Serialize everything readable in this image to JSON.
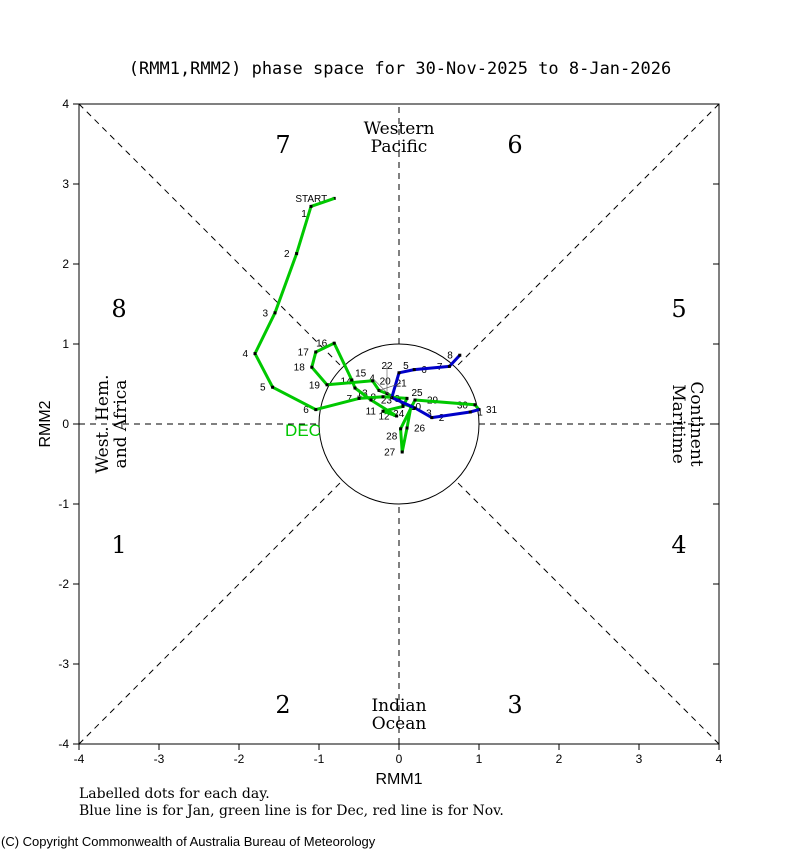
{
  "chart_data": {
    "type": "line",
    "title": "(RMM1,RMM2) phase space for 30-Nov-2025 to  8-Jan-2026",
    "xlabel": "RMM1",
    "ylabel": "RMM2",
    "xlim": [
      -4,
      4
    ],
    "ylim": [
      -4,
      4
    ],
    "xticks": [
      "-4",
      "-3",
      "-2",
      "-1",
      "0",
      "1",
      "2",
      "3",
      "4"
    ],
    "yticks": [
      "-4",
      "-3",
      "-2",
      "-1",
      "0",
      "1",
      "2",
      "3",
      "4"
    ],
    "phases": [
      {
        "label": "1",
        "x": -3.5,
        "y": -1.5
      },
      {
        "label": "2",
        "x": -1.45,
        "y": -3.5
      },
      {
        "label": "3",
        "x": 1.45,
        "y": -3.5
      },
      {
        "label": "4",
        "x": 3.5,
        "y": -1.5
      },
      {
        "label": "5",
        "x": 3.5,
        "y": 1.45
      },
      {
        "label": "6",
        "x": 1.45,
        "y": 3.5
      },
      {
        "label": "7",
        "x": -1.45,
        "y": 3.5
      },
      {
        "label": "8",
        "x": -3.5,
        "y": 1.45
      }
    ],
    "regions": {
      "top": [
        "Western",
        "Pacific"
      ],
      "bottom": [
        "Indian",
        "Ocean"
      ],
      "left": [
        "West. Hem.",
        "and Africa"
      ],
      "right": [
        "Maritime",
        "Continent"
      ]
    },
    "start_label": "START",
    "month_label": "DEC",
    "series": [
      {
        "name": "Nov",
        "color": "#ff0000",
        "points": [
          {
            "label": "START",
            "x": -0.81,
            "y": 2.82
          }
        ]
      },
      {
        "name": "Dec",
        "color": "#00c800",
        "points": [
          {
            "label": "1",
            "x": -1.1,
            "y": 2.72
          },
          {
            "label": "2",
            "x": -1.28,
            "y": 2.13
          },
          {
            "label": "3",
            "x": -1.55,
            "y": 1.39
          },
          {
            "label": "4",
            "x": -1.8,
            "y": 0.88
          },
          {
            "label": "5",
            "x": -1.58,
            "y": 0.46
          },
          {
            "label": "6",
            "x": -1.04,
            "y": 0.18
          },
          {
            "label": "7",
            "x": -0.5,
            "y": 0.32
          },
          {
            "label": "8",
            "x": -0.2,
            "y": 0.34
          },
          {
            "label": "9",
            "x": 0.1,
            "y": 0.32
          },
          {
            "label": "10",
            "x": 0.05,
            "y": 0.22
          },
          {
            "label": "11",
            "x": -0.2,
            "y": 0.16
          },
          {
            "label": "12",
            "x": -0.03,
            "y": 0.1
          },
          {
            "label": "13",
            "x": -0.35,
            "y": 0.3
          },
          {
            "label": "14",
            "x": -0.55,
            "y": 0.45
          },
          {
            "label": "15",
            "x": -0.59,
            "y": 0.55
          },
          {
            "label": "16",
            "x": -0.81,
            "y": 1.01
          },
          {
            "label": "17",
            "x": -1.04,
            "y": 0.9
          },
          {
            "label": "18",
            "x": -1.09,
            "y": 0.71
          },
          {
            "label": "19",
            "x": -0.9,
            "y": 0.49
          },
          {
            "label": "20",
            "x": -0.33,
            "y": 0.54
          },
          {
            "label": "21",
            "x": -0.25,
            "y": 0.42
          },
          {
            "label": "22",
            "x": -0.15,
            "y": 0.38
          },
          {
            "label": "23",
            "x": 0.0,
            "y": 0.3
          },
          {
            "label": "24",
            "x": 0.05,
            "y": 0.25
          },
          {
            "label": "25",
            "x": 0.15,
            "y": 0.22
          },
          {
            "label": "26",
            "x": 0.1,
            "y": -0.05
          },
          {
            "label": "27",
            "x": 0.04,
            "y": -0.35
          },
          {
            "label": "28",
            "x": 0.02,
            "y": -0.06
          },
          {
            "label": "29",
            "x": 0.2,
            "y": 0.3
          },
          {
            "label": "30",
            "x": 0.95,
            "y": 0.24
          },
          {
            "label": "31",
            "x": 1.0,
            "y": 0.18
          }
        ]
      },
      {
        "name": "Jan",
        "color": "#0000c8",
        "points": [
          {
            "label": "1",
            "x": 0.89,
            "y": 0.15
          },
          {
            "label": "2",
            "x": 0.41,
            "y": 0.08
          },
          {
            "label": "3",
            "x": 0.2,
            "y": 0.2
          },
          {
            "label": "4",
            "x": -0.09,
            "y": 0.33
          },
          {
            "label": "5",
            "x": 0.0,
            "y": 0.64
          },
          {
            "label": "6",
            "x": 0.19,
            "y": 0.68
          },
          {
            "label": "7",
            "x": 0.63,
            "y": 0.72
          },
          {
            "label": "8",
            "x": 0.76,
            "y": 0.86
          }
        ]
      }
    ]
  },
  "notes": {
    "line1": "Labelled dots for each day.",
    "line2": "Blue line is for Jan, green line is for Dec, red line is for Nov."
  },
  "copyright": "(C) Copyright Commonwealth of Australia Bureau of Meteorology"
}
